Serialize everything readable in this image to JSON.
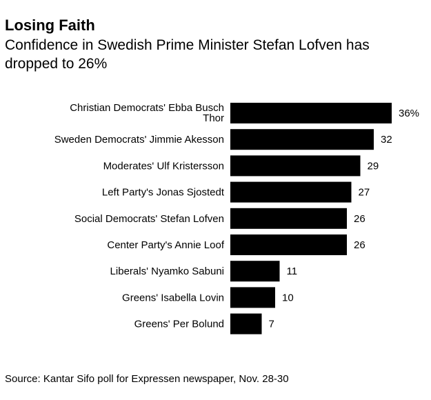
{
  "header": {
    "title": "Losing Faith",
    "subtitle": "Confidence in Swedish Prime Minister Stefan Lofven has dropped to 26%"
  },
  "footer": {
    "source": "Source: Kantar Sifo poll for Expressen newspaper, Nov. 28-30"
  },
  "chart_data": {
    "type": "bar",
    "orientation": "horizontal",
    "title": "Losing Faith",
    "subtitle": "Confidence in Swedish Prime Minister Stefan Lofven has dropped to 26%",
    "xlabel": "",
    "ylabel": "",
    "xlim": [
      0,
      36
    ],
    "grid": false,
    "value_suffix_first": "%",
    "categories": [
      "Christian Democrats' Ebba Busch Thor",
      "Sweden Democrats' Jimmie Akesson",
      "Moderates' Ulf Kristersson",
      "Left Party's Jonas Sjostedt",
      "Social Democrats' Stefan Lofven",
      "Center Party's Annie Loof",
      "Liberals' Nyamko Sabuni",
      "Greens' Isabella Lovin",
      "Greens' Per Bolund"
    ],
    "values": [
      36,
      32,
      29,
      27,
      26,
      26,
      11,
      10,
      7
    ],
    "value_labels": [
      "36%",
      "32",
      "29",
      "27",
      "26",
      "26",
      "11",
      "10",
      "7"
    ],
    "bar_color": "#000000"
  }
}
